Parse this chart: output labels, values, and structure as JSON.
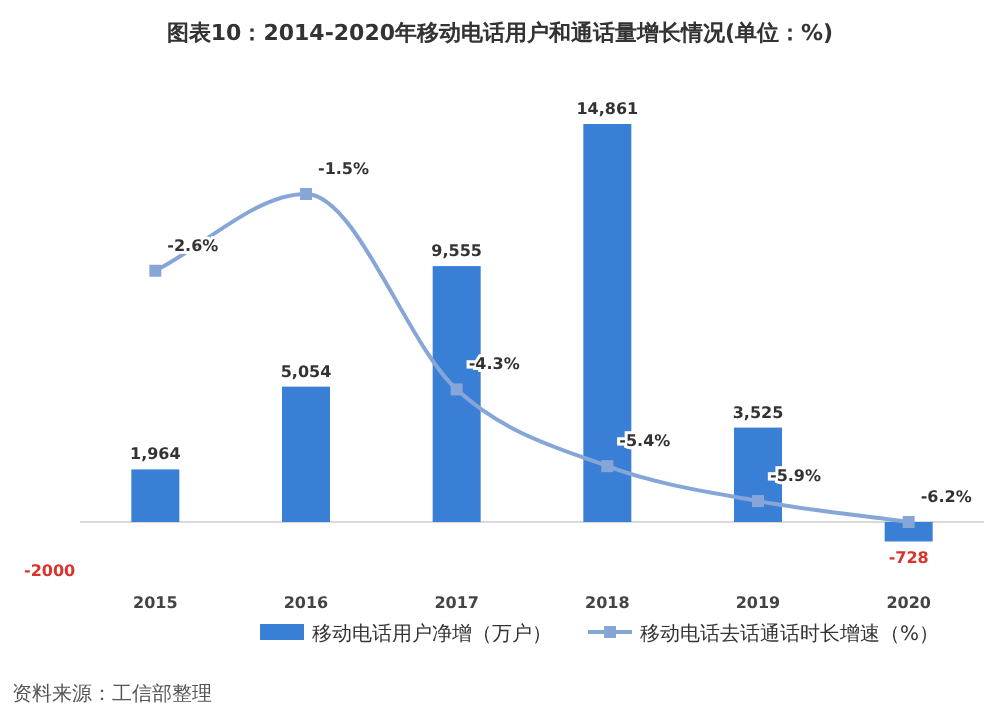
{
  "chart_data": {
    "type": "bar",
    "title": "图表10：2014-2020年移动电话用户和通话量增长情况(单位：%)",
    "categories": [
      "2015",
      "2016",
      "2017",
      "2018",
      "2019",
      "2020"
    ],
    "series": [
      {
        "name": "移动电话用户净增（万户）",
        "color": "#3a7fd6",
        "values": [
          1964,
          5054,
          9555,
          14861,
          3525,
          -728
        ],
        "value_labels": [
          "1,964",
          "5,054",
          "9,555",
          "14,861",
          "3,525",
          "-728"
        ]
      },
      {
        "name": "移动电话去话通话时长增速（%）",
        "type": "line",
        "axis": "y2",
        "color": "#86a6d8",
        "marker": "square",
        "values": [
          -2.6,
          -1.5,
          -4.3,
          -5.4,
          -5.9,
          -6.2
        ],
        "value_labels": [
          "-2.6%",
          "-1.5%",
          "-4.3%",
          "-5.4%",
          "-5.9%",
          "-6.2%"
        ]
      }
    ],
    "legend": "bottom",
    "annotations": [
      "-2000",
      "资料来源：工信部整理"
    ]
  }
}
